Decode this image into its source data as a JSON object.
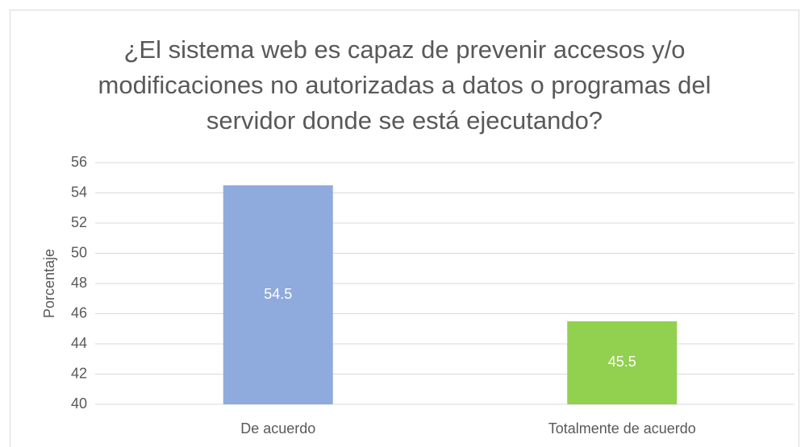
{
  "chart_data": {
    "type": "bar",
    "title": "¿El sistema web es capaz de prevenir accesos y/o modificaciones no autorizadas a datos o programas del servidor donde se está ejecutando?",
    "y_label": "Porcentaje",
    "categories": [
      "De acuerdo",
      "Totalmente de acuerdo"
    ],
    "values": [
      54.5,
      45.5
    ],
    "colors": [
      "#8faadc",
      "#92d050"
    ],
    "ylim": [
      40,
      56
    ],
    "yticks": [
      40,
      42,
      44,
      46,
      48,
      50,
      52,
      54,
      56
    ],
    "grid": true
  }
}
